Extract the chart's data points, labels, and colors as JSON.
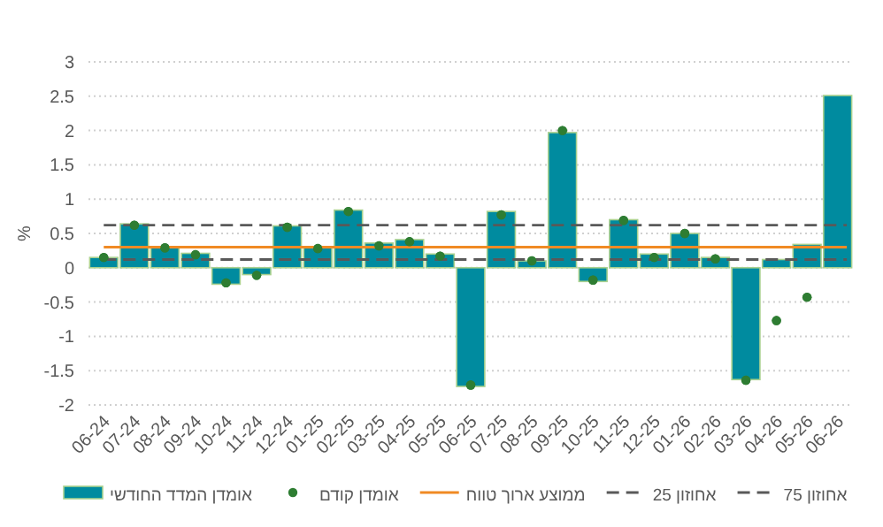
{
  "chart_data": {
    "type": "bar",
    "ylabel": "%",
    "categories": [
      "06-24",
      "07-24",
      "08-24",
      "09-24",
      "10-24",
      "11-24",
      "12-24",
      "01-25",
      "02-25",
      "03-25",
      "04-25",
      "05-25",
      "06-25",
      "07-25",
      "08-25",
      "09-25",
      "10-25",
      "11-25",
      "12-25",
      "01-26",
      "02-26",
      "03-26",
      "04-26",
      "05-26",
      "06-26"
    ],
    "series": [
      {
        "name": "אומדן המדד החודשי",
        "color": "#008b9f",
        "values": [
          0.15,
          0.64,
          0.29,
          0.21,
          -0.24,
          -0.1,
          0.61,
          0.29,
          0.84,
          0.36,
          0.41,
          0.2,
          -1.73,
          0.82,
          0.1,
          1.97,
          -0.2,
          0.7,
          0.2,
          0.5,
          0.15,
          -1.63,
          0.12,
          0.34,
          2.51
        ]
      },
      {
        "name": "אומדן קודם",
        "type": "scatter",
        "color": "#2e7d32",
        "values": [
          0.15,
          0.62,
          0.29,
          0.19,
          -0.22,
          -0.11,
          0.59,
          0.28,
          0.82,
          0.32,
          0.38,
          0.17,
          -1.71,
          0.77,
          0.1,
          2.0,
          -0.18,
          0.69,
          0.15,
          0.5,
          0.13,
          -1.64,
          -0.77,
          -0.43,
          null
        ]
      }
    ],
    "ref_lines": [
      {
        "axis": "y",
        "value": 0.3,
        "label": "ממוצע ארוך טווח",
        "color": "#f08a24",
        "line_style": "solid"
      },
      {
        "axis": "y",
        "value": 0.12,
        "label": "אחוזון 25",
        "color": "#595959",
        "line_style": "dashed"
      },
      {
        "axis": "y",
        "value": 0.62,
        "label": "אחוזון 75",
        "color": "#595959",
        "line_style": "dashed"
      }
    ],
    "marker": "circle",
    "ylim": [
      -2,
      3
    ],
    "yticks": [
      -2,
      -1.5,
      -1,
      -0.5,
      0,
      0.5,
      1,
      1.5,
      2,
      2.5,
      3
    ],
    "grid": "y",
    "legend": "bottom"
  }
}
